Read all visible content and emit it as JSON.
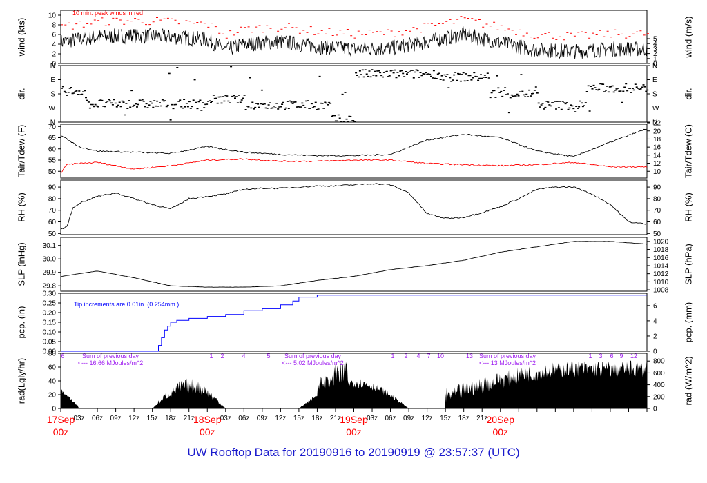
{
  "colors": {
    "axis": "#000000",
    "wind_peak": "#ff0000",
    "dew": "#ff0000",
    "precip": "#0000ff",
    "radiation_note": "#a020f0",
    "date_label": "#ff0000",
    "footer": "#1a1acc"
  },
  "footer": {
    "title": "UW Rooftop Data for 20190916  to  20190919 @ 23:57:37  (UTC)"
  },
  "chart_data": [
    {
      "type": "line",
      "id": "wind",
      "ylabel_left": "wind (kts)",
      "ylabel_right": "wind (m/s)",
      "ylim": [
        0,
        11
      ],
      "yticks_left": [
        "0",
        "2",
        "4",
        "6",
        "8",
        "10"
      ],
      "yticks_right": [
        "0",
        "1",
        "2",
        "3",
        "4",
        "5"
      ],
      "annotation": "10 min. peak winds in red",
      "series": [
        {
          "x_hours": [
            0,
            6,
            12,
            18,
            24,
            27,
            30,
            36,
            42,
            48,
            54,
            60,
            66,
            72,
            78,
            84,
            90
          ],
          "values": [
            4.5,
            5.5,
            5.8,
            5.5,
            5.0,
            2.8,
            4.0,
            4.5,
            3.5,
            3.0,
            3.2,
            4.5,
            6.0,
            4.3,
            2.8,
            2.5,
            3.0
          ]
        }
      ]
    },
    {
      "type": "scatter",
      "id": "dir",
      "ylabel_left": "dir.",
      "ylabel_right": "dir.",
      "yticks_left": [
        "N",
        "W",
        "S",
        "E",
        "N"
      ],
      "yticks_right": [
        "N",
        "W",
        "S",
        "E",
        "N"
      ]
    },
    {
      "type": "line",
      "id": "temp",
      "ylabel_left": "Tair/Tdew (F)",
      "ylabel_right": "Tair/Tdew (C)",
      "ylim": [
        47,
        71
      ],
      "yticks_left": [
        "50",
        "55",
        "60",
        "65",
        "70"
      ],
      "yticks_right": [
        "10",
        "12",
        "14",
        "16",
        "18",
        "20",
        "22"
      ],
      "series": [
        {
          "x_hours": [
            0,
            3,
            6,
            12,
            18,
            21,
            24,
            30,
            36,
            42,
            48,
            54,
            60,
            66,
            72,
            78,
            84,
            90,
            96
          ],
          "values": [
            66,
            61,
            59,
            58.5,
            58,
            59.5,
            61,
            58.5,
            57.5,
            57,
            57,
            57.5,
            64,
            66.5,
            65,
            59,
            56.5,
            63,
            69
          ]
        },
        {
          "x_hours": [
            0,
            1,
            3,
            6,
            12,
            18,
            24,
            30,
            36,
            42,
            48,
            54,
            60,
            66,
            72,
            78,
            84,
            90,
            96
          ],
          "values": [
            49,
            53,
            53.5,
            54,
            51,
            52.5,
            55,
            55.5,
            54.5,
            54.5,
            55,
            55,
            53.5,
            53,
            52.5,
            53,
            54,
            52,
            52
          ]
        }
      ]
    },
    {
      "type": "line",
      "id": "rh",
      "ylabel_left": "RH (%)",
      "ylabel_right": "RH (%)",
      "ylim": [
        49,
        96
      ],
      "yticks_left": [
        "50",
        "60",
        "70",
        "80",
        "90"
      ],
      "yticks_right": [
        "50",
        "60",
        "70",
        "80",
        "90"
      ],
      "series": [
        {
          "x_hours": [
            0,
            1,
            2,
            3,
            6,
            9,
            12,
            15,
            18,
            21,
            24,
            27,
            30,
            33,
            36,
            39,
            42,
            45,
            48,
            51,
            54,
            57,
            60,
            63,
            66,
            69,
            72,
            75,
            78,
            81,
            84,
            87,
            90,
            93,
            96
          ],
          "values": [
            53,
            56,
            72,
            76,
            82,
            85,
            80,
            75,
            71,
            80,
            82,
            84,
            88,
            89,
            89,
            90,
            91,
            91,
            92,
            93,
            92,
            85,
            67,
            63,
            64,
            68,
            73,
            80,
            88,
            90,
            90,
            84,
            75,
            60,
            58
          ]
        }
      ]
    },
    {
      "type": "line",
      "id": "slp",
      "ylabel_left": "SLP (inHg)",
      "ylabel_right": "SLP (hPa)",
      "ylim": [
        29.76,
        30.16
      ],
      "yticks_left": [
        "29.8",
        "29.9",
        "30.0",
        "30.1"
      ],
      "yticks_right": [
        "1008",
        "1010",
        "1012",
        "1014",
        "1016",
        "1018",
        "1020"
      ],
      "series": [
        {
          "x_hours": [
            0,
            6,
            12,
            18,
            24,
            30,
            36,
            42,
            48,
            54,
            60,
            66,
            72,
            78,
            84,
            90,
            96
          ],
          "values": [
            29.87,
            29.91,
            29.86,
            29.8,
            29.79,
            29.79,
            29.8,
            29.84,
            29.87,
            29.92,
            29.95,
            29.99,
            30.05,
            30.09,
            30.13,
            30.13,
            30.11
          ]
        }
      ]
    },
    {
      "type": "line",
      "id": "pcp",
      "ylabel_left": "pcp. (in)",
      "ylabel_right": "pcp. (mm)",
      "ylim": [
        0,
        0.3
      ],
      "yticks_left": [
        "0.00",
        "0.05",
        "0.10",
        "0.15",
        "0.20",
        "0.25",
        "0.30"
      ],
      "yticks_right": [
        "0",
        "2",
        "4",
        "6"
      ],
      "annotation": "Tip increments are 0.01in. (0.254mm.)",
      "series": [
        {
          "x_hours": [
            0,
            15.5,
            16,
            16.5,
            17,
            17.5,
            18,
            19,
            20,
            21,
            22,
            24,
            27,
            30,
            33,
            36,
            38,
            39,
            42,
            96
          ],
          "values": [
            0,
            0,
            0.03,
            0.07,
            0.11,
            0.13,
            0.15,
            0.16,
            0.16,
            0.17,
            0.17,
            0.18,
            0.19,
            0.21,
            0.22,
            0.24,
            0.26,
            0.28,
            0.29,
            0.29
          ]
        }
      ]
    },
    {
      "type": "area",
      "id": "rad",
      "ylabel_left": "rad(Lgly/hr)",
      "ylabel_right": "rad (W/m^2)",
      "ylim": [
        0,
        80
      ],
      "yticks_left": [
        "0",
        "20",
        "40",
        "60",
        "80"
      ],
      "yticks_right": [
        "0",
        "200",
        "400",
        "600",
        "800"
      ],
      "day_sums": [
        "Sum of previous day\n<--- 16.66 MJoules/m^2",
        "Sum of previous day\n<--- 5.02 MJoules/m^2",
        "Sum of previous day\n<--- 13 MJoules/m^2"
      ],
      "hour_marks": [
        "6",
        "1",
        "2",
        "4",
        "5",
        "1",
        "2",
        "4",
        "7",
        "10",
        "13",
        "1",
        "3",
        "6",
        "9",
        "12"
      ]
    }
  ],
  "x_axis": {
    "hour_labels": [
      "03z",
      "06z",
      "09z",
      "12z",
      "15z",
      "18z",
      "21z",
      "03z",
      "06z",
      "09z",
      "12z",
      "15z",
      "18z",
      "21z",
      "03z",
      "06z",
      "09z",
      "12z",
      "15z",
      "18z",
      "21z"
    ],
    "date_labels": [
      {
        "date": "17Sep",
        "hour": "00z"
      },
      {
        "date": "18Sep",
        "hour": "00z"
      },
      {
        "date": "19Sep",
        "hour": "00z"
      },
      {
        "date": "20Sep",
        "hour": "00z"
      }
    ]
  }
}
